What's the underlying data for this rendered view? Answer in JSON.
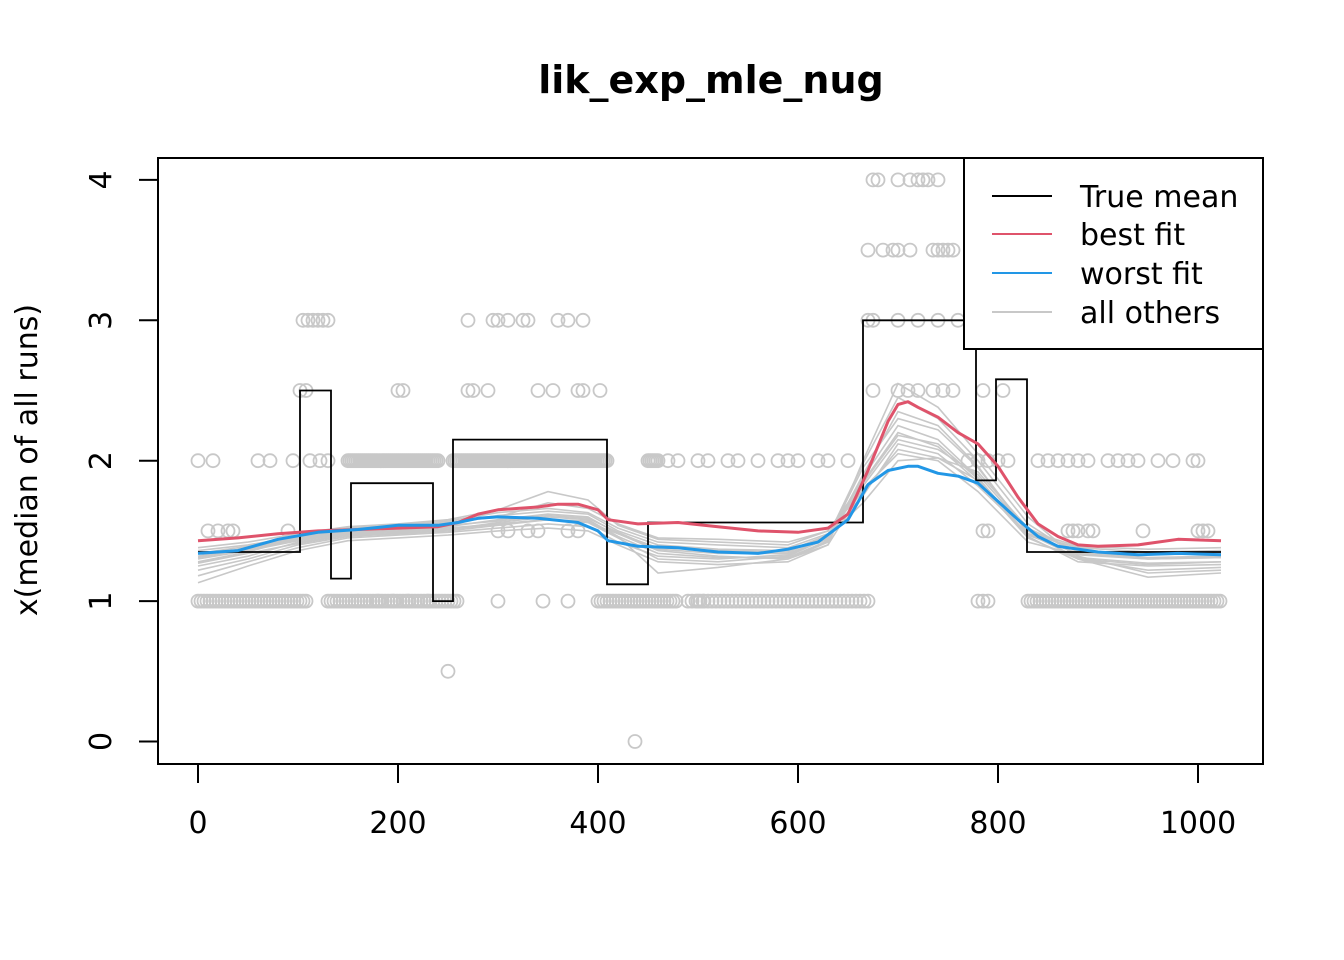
{
  "chart_data": {
    "type": "line",
    "title": "lik_exp_mle_nug",
    "xlabel": "",
    "ylabel": "x(median of all runs)",
    "xlim": [
      0,
      1023
    ],
    "ylim": [
      0,
      4
    ],
    "xticks": [
      "0",
      "200",
      "400",
      "600",
      "800",
      "1000"
    ],
    "yticks": [
      "0",
      "1",
      "2",
      "3",
      "4"
    ],
    "grid": false,
    "legend_position": "top-right",
    "legend": [
      "True mean",
      "best fit",
      "worst fit",
      "all others"
    ],
    "colors": {
      "true_mean": "#000000",
      "best_fit": "#DF536B",
      "worst_fit": "#2297E6",
      "others": "#C8C8C8",
      "points": "#C8C8C8"
    },
    "true_mean": {
      "segments": [
        {
          "x0": 0,
          "x1": 102,
          "y": 1.35
        },
        {
          "x0": 102,
          "x1": 133,
          "y": 2.5
        },
        {
          "x0": 133,
          "x1": 153,
          "y": 1.16
        },
        {
          "x0": 153,
          "x1": 235,
          "y": 1.84
        },
        {
          "x0": 235,
          "x1": 255,
          "y": 1.0
        },
        {
          "x0": 255,
          "x1": 409,
          "y": 2.15
        },
        {
          "x0": 409,
          "x1": 450,
          "y": 1.12
        },
        {
          "x0": 450,
          "x1": 665,
          "y": 1.56
        },
        {
          "x0": 665,
          "x1": 778,
          "y": 3.0
        },
        {
          "x0": 778,
          "x1": 798,
          "y": 1.86
        },
        {
          "x0": 798,
          "x1": 829,
          "y": 2.58
        },
        {
          "x0": 829,
          "x1": 1023,
          "y": 1.35
        }
      ]
    },
    "series": [
      {
        "name": "best fit",
        "x": [
          0,
          40,
          80,
          120,
          160,
          200,
          240,
          260,
          280,
          300,
          320,
          340,
          360,
          380,
          400,
          410,
          440,
          480,
          520,
          560,
          600,
          630,
          650,
          670,
          690,
          700,
          710,
          720,
          740,
          760,
          780,
          800,
          820,
          840,
          860,
          880,
          900,
          940,
          980,
          1023
        ],
        "y": [
          1.43,
          1.45,
          1.48,
          1.5,
          1.51,
          1.52,
          1.53,
          1.56,
          1.62,
          1.65,
          1.66,
          1.67,
          1.69,
          1.69,
          1.65,
          1.58,
          1.55,
          1.56,
          1.53,
          1.5,
          1.49,
          1.52,
          1.62,
          1.93,
          2.28,
          2.4,
          2.42,
          2.38,
          2.31,
          2.2,
          2.12,
          1.96,
          1.74,
          1.55,
          1.46,
          1.4,
          1.39,
          1.4,
          1.44,
          1.43
        ]
      },
      {
        "name": "worst fit",
        "x": [
          0,
          40,
          80,
          120,
          160,
          200,
          240,
          260,
          280,
          300,
          340,
          380,
          400,
          410,
          440,
          480,
          520,
          560,
          590,
          620,
          650,
          670,
          690,
          710,
          720,
          740,
          760,
          780,
          800,
          820,
          840,
          860,
          900,
          940,
          980,
          1023
        ],
        "y": [
          1.34,
          1.36,
          1.44,
          1.49,
          1.51,
          1.54,
          1.54,
          1.56,
          1.59,
          1.6,
          1.59,
          1.56,
          1.5,
          1.43,
          1.39,
          1.38,
          1.35,
          1.34,
          1.37,
          1.42,
          1.58,
          1.83,
          1.93,
          1.96,
          1.96,
          1.91,
          1.89,
          1.84,
          1.71,
          1.58,
          1.46,
          1.39,
          1.35,
          1.33,
          1.34,
          1.33
        ]
      }
    ],
    "others_series": [
      [
        1.28,
        1.35,
        1.45,
        1.5,
        1.52,
        1.56,
        1.6,
        1.7,
        1.66,
        1.55,
        1.45,
        1.44,
        1.42,
        1.5,
        1.85,
        2.2,
        2.1,
        1.85,
        1.45,
        1.3,
        1.26,
        1.28
      ],
      [
        1.32,
        1.38,
        1.44,
        1.49,
        1.5,
        1.53,
        1.58,
        1.62,
        1.6,
        1.48,
        1.36,
        1.32,
        1.3,
        1.4,
        1.8,
        2.05,
        2.0,
        1.78,
        1.42,
        1.33,
        1.3,
        1.31
      ],
      [
        1.22,
        1.3,
        1.4,
        1.46,
        1.48,
        1.5,
        1.54,
        1.58,
        1.56,
        1.45,
        1.3,
        1.28,
        1.32,
        1.45,
        1.95,
        2.3,
        2.22,
        1.95,
        1.5,
        1.3,
        1.22,
        1.24
      ],
      [
        1.36,
        1.4,
        1.46,
        1.52,
        1.54,
        1.57,
        1.63,
        1.66,
        1.63,
        1.52,
        1.42,
        1.4,
        1.38,
        1.48,
        1.75,
        2.12,
        2.05,
        1.82,
        1.48,
        1.38,
        1.35,
        1.36
      ],
      [
        1.25,
        1.32,
        1.42,
        1.47,
        1.49,
        1.51,
        1.56,
        1.6,
        1.58,
        1.46,
        1.2,
        1.24,
        1.3,
        1.42,
        1.88,
        2.25,
        2.15,
        1.88,
        1.46,
        1.28,
        1.25,
        1.26
      ],
      [
        1.3,
        1.36,
        1.43,
        1.48,
        1.5,
        1.52,
        1.55,
        1.58,
        1.56,
        1.48,
        1.38,
        1.36,
        1.35,
        1.46,
        1.7,
        2.0,
        2.02,
        1.92,
        1.52,
        1.35,
        1.31,
        1.32
      ],
      [
        1.18,
        1.28,
        1.38,
        1.45,
        1.47,
        1.49,
        1.52,
        1.55,
        1.53,
        1.42,
        1.32,
        1.3,
        1.33,
        1.46,
        1.98,
        2.45,
        2.3,
        2.0,
        1.55,
        1.32,
        1.2,
        1.22
      ],
      [
        1.34,
        1.39,
        1.45,
        1.51,
        1.53,
        1.56,
        1.61,
        1.64,
        1.62,
        1.5,
        1.4,
        1.37,
        1.36,
        1.47,
        1.82,
        2.15,
        2.08,
        1.9,
        1.5,
        1.36,
        1.33,
        1.34
      ],
      [
        1.27,
        1.34,
        1.41,
        1.47,
        1.49,
        1.51,
        1.55,
        1.58,
        1.57,
        1.46,
        1.34,
        1.31,
        1.31,
        1.43,
        1.9,
        2.35,
        2.25,
        1.96,
        1.48,
        1.31,
        1.27,
        1.28
      ],
      [
        1.38,
        1.42,
        1.48,
        1.53,
        1.55,
        1.58,
        1.65,
        1.78,
        1.72,
        1.54,
        1.44,
        1.42,
        1.4,
        1.5,
        1.78,
        2.08,
        2.02,
        1.86,
        1.5,
        1.39,
        1.37,
        1.38
      ],
      [
        1.13,
        1.25,
        1.36,
        1.43,
        1.45,
        1.47,
        1.5,
        1.52,
        1.5,
        1.4,
        1.28,
        1.26,
        1.28,
        1.4,
        2.0,
        2.55,
        2.38,
        2.05,
        1.6,
        1.3,
        1.17,
        1.2
      ],
      [
        1.31,
        1.37,
        1.44,
        1.49,
        1.51,
        1.54,
        1.57,
        1.61,
        1.59,
        1.49,
        1.37,
        1.34,
        1.34,
        1.44,
        1.84,
        2.18,
        2.12,
        1.87,
        1.47,
        1.34,
        1.3,
        1.31
      ]
    ],
    "others_x": [
      0,
      50,
      100,
      150,
      200,
      250,
      300,
      350,
      390,
      420,
      460,
      520,
      590,
      630,
      665,
      700,
      740,
      780,
      830,
      880,
      950,
      1023
    ],
    "points": [
      [
        0,
        2
      ],
      [
        15,
        2
      ],
      [
        60,
        2
      ],
      [
        72,
        2
      ],
      [
        95,
        2
      ],
      [
        102,
        2.5
      ],
      [
        108,
        2.5
      ],
      [
        105,
        3
      ],
      [
        110,
        3
      ],
      [
        115,
        3
      ],
      [
        120,
        3
      ],
      [
        125,
        3
      ],
      [
        130,
        3
      ],
      [
        112,
        2
      ],
      [
        122,
        2
      ],
      [
        130,
        2
      ],
      [
        200,
        2.5
      ],
      [
        205,
        2.5
      ],
      [
        270,
        2.5
      ],
      [
        275,
        2.5
      ],
      [
        290,
        2.5
      ],
      [
        340,
        2.5
      ],
      [
        355,
        2.5
      ],
      [
        380,
        2.5
      ],
      [
        385,
        2.5
      ],
      [
        402,
        2.5
      ],
      [
        270,
        3
      ],
      [
        295,
        3
      ],
      [
        300,
        3
      ],
      [
        310,
        3
      ],
      [
        325,
        3
      ],
      [
        330,
        3
      ],
      [
        360,
        3
      ],
      [
        370,
        3
      ],
      [
        385,
        3
      ],
      [
        10,
        1.5
      ],
      [
        20,
        1.5
      ],
      [
        30,
        1.5
      ],
      [
        35,
        1.5
      ],
      [
        90,
        1.5
      ],
      [
        300,
        1.5
      ],
      [
        310,
        1.5
      ],
      [
        330,
        1.5
      ],
      [
        340,
        1.5
      ],
      [
        370,
        1.5
      ],
      [
        380,
        1.5
      ],
      [
        870,
        1.5
      ],
      [
        875,
        1.5
      ],
      [
        880,
        1.5
      ],
      [
        890,
        1.5
      ],
      [
        895,
        1.5
      ],
      [
        945,
        1.5
      ],
      [
        1000,
        1.5
      ],
      [
        1005,
        1.5
      ],
      [
        1010,
        1.5
      ],
      [
        790,
        1.5
      ],
      [
        785,
        1.5
      ],
      [
        250,
        0.5
      ],
      [
        437,
        0
      ],
      [
        675,
        4
      ],
      [
        680,
        4
      ],
      [
        700,
        4
      ],
      [
        712,
        4
      ],
      [
        720,
        4
      ],
      [
        725,
        4
      ],
      [
        730,
        4
      ],
      [
        740,
        4
      ],
      [
        670,
        3.5
      ],
      [
        685,
        3.5
      ],
      [
        695,
        3.5
      ],
      [
        700,
        3.5
      ],
      [
        712,
        3.5
      ],
      [
        735,
        3.5
      ],
      [
        740,
        3.5
      ],
      [
        745,
        3.5
      ],
      [
        750,
        3.5
      ],
      [
        755,
        3.5
      ],
      [
        670,
        3
      ],
      [
        675,
        3
      ],
      [
        700,
        3
      ],
      [
        720,
        3
      ],
      [
        740,
        3
      ],
      [
        760,
        3
      ],
      [
        675,
        2.5
      ],
      [
        700,
        2.5
      ],
      [
        710,
        2.5
      ],
      [
        720,
        2.5
      ],
      [
        735,
        2.5
      ],
      [
        745,
        2.5
      ],
      [
        755,
        2.5
      ],
      [
        785,
        2.5
      ],
      [
        805,
        2.5
      ],
      [
        780,
        1
      ],
      [
        785,
        1
      ],
      [
        790,
        1
      ],
      [
        500,
        1
      ],
      [
        505,
        1
      ],
      [
        300,
        1
      ],
      [
        345,
        1
      ],
      [
        370,
        1
      ],
      [
        160,
        1
      ],
      [
        180,
        1
      ],
      [
        195,
        1
      ],
      [
        210,
        1
      ],
      [
        230,
        1
      ],
      [
        470,
        2
      ],
      [
        480,
        2
      ],
      [
        500,
        2
      ],
      [
        510,
        2
      ],
      [
        530,
        2
      ],
      [
        540,
        2
      ],
      [
        560,
        2
      ],
      [
        580,
        2
      ],
      [
        590,
        2
      ],
      [
        600,
        2
      ],
      [
        620,
        2
      ],
      [
        630,
        2
      ],
      [
        650,
        2
      ],
      [
        770,
        2
      ],
      [
        780,
        2
      ],
      [
        790,
        2
      ],
      [
        800,
        2
      ],
      [
        810,
        2
      ],
      [
        840,
        2
      ],
      [
        850,
        2
      ],
      [
        860,
        2
      ],
      [
        870,
        2
      ],
      [
        880,
        2
      ],
      [
        890,
        2
      ],
      [
        910,
        2
      ],
      [
        920,
        2
      ],
      [
        930,
        2
      ],
      [
        940,
        2
      ],
      [
        960,
        2
      ],
      [
        975,
        2
      ],
      [
        995,
        2
      ],
      [
        1000,
        2
      ]
    ],
    "point_runs": [
      {
        "y": 1,
        "from": 0,
        "to": 110,
        "step": 3
      },
      {
        "y": 1,
        "from": 130,
        "to": 260,
        "step": 3
      },
      {
        "y": 1,
        "from": 400,
        "to": 480,
        "step": 3
      },
      {
        "y": 1,
        "from": 490,
        "to": 670,
        "step": 4
      },
      {
        "y": 1,
        "from": 830,
        "to": 1023,
        "step": 3
      },
      {
        "y": 2,
        "from": 150,
        "to": 240,
        "step": 2
      },
      {
        "y": 2,
        "from": 255,
        "to": 410,
        "step": 2
      },
      {
        "y": 2,
        "from": 450,
        "to": 460,
        "step": 2
      }
    ]
  }
}
